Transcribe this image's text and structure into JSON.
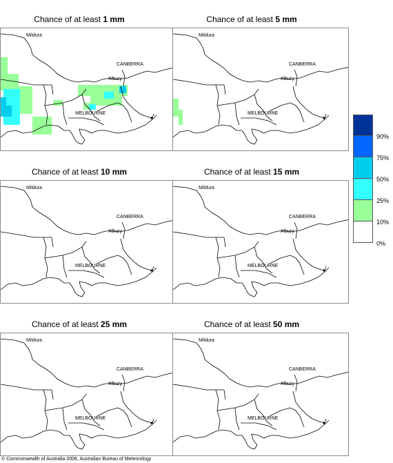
{
  "panels": [
    {
      "title_prefix": "Chance of at least ",
      "amount": "1 mm"
    },
    {
      "title_prefix": "Chance of at least ",
      "amount": "5 mm"
    },
    {
      "title_prefix": "Chance of at least ",
      "amount": "10 mm"
    },
    {
      "title_prefix": "Chance of at least ",
      "amount": "15 mm"
    },
    {
      "title_prefix": "Chance of at least ",
      "amount": "25 mm"
    },
    {
      "title_prefix": "Chance of at least ",
      "amount": "50 mm"
    }
  ],
  "places": {
    "mildura": "Mildura",
    "canberra": "CANBERRA",
    "albury": "Albury",
    "melbourne": "MELBOURNE"
  },
  "legend": {
    "labels": [
      "90%",
      "75%",
      "50%",
      "25%",
      "10%",
      "0%"
    ],
    "colors": [
      "#003399",
      "#0066ff",
      "#00ccee",
      "#33ffff",
      "#99ff99",
      "#ffffff"
    ]
  },
  "copyright": "© Commonwealth of Australia 2006, Australian Bureau of Meteorology"
}
